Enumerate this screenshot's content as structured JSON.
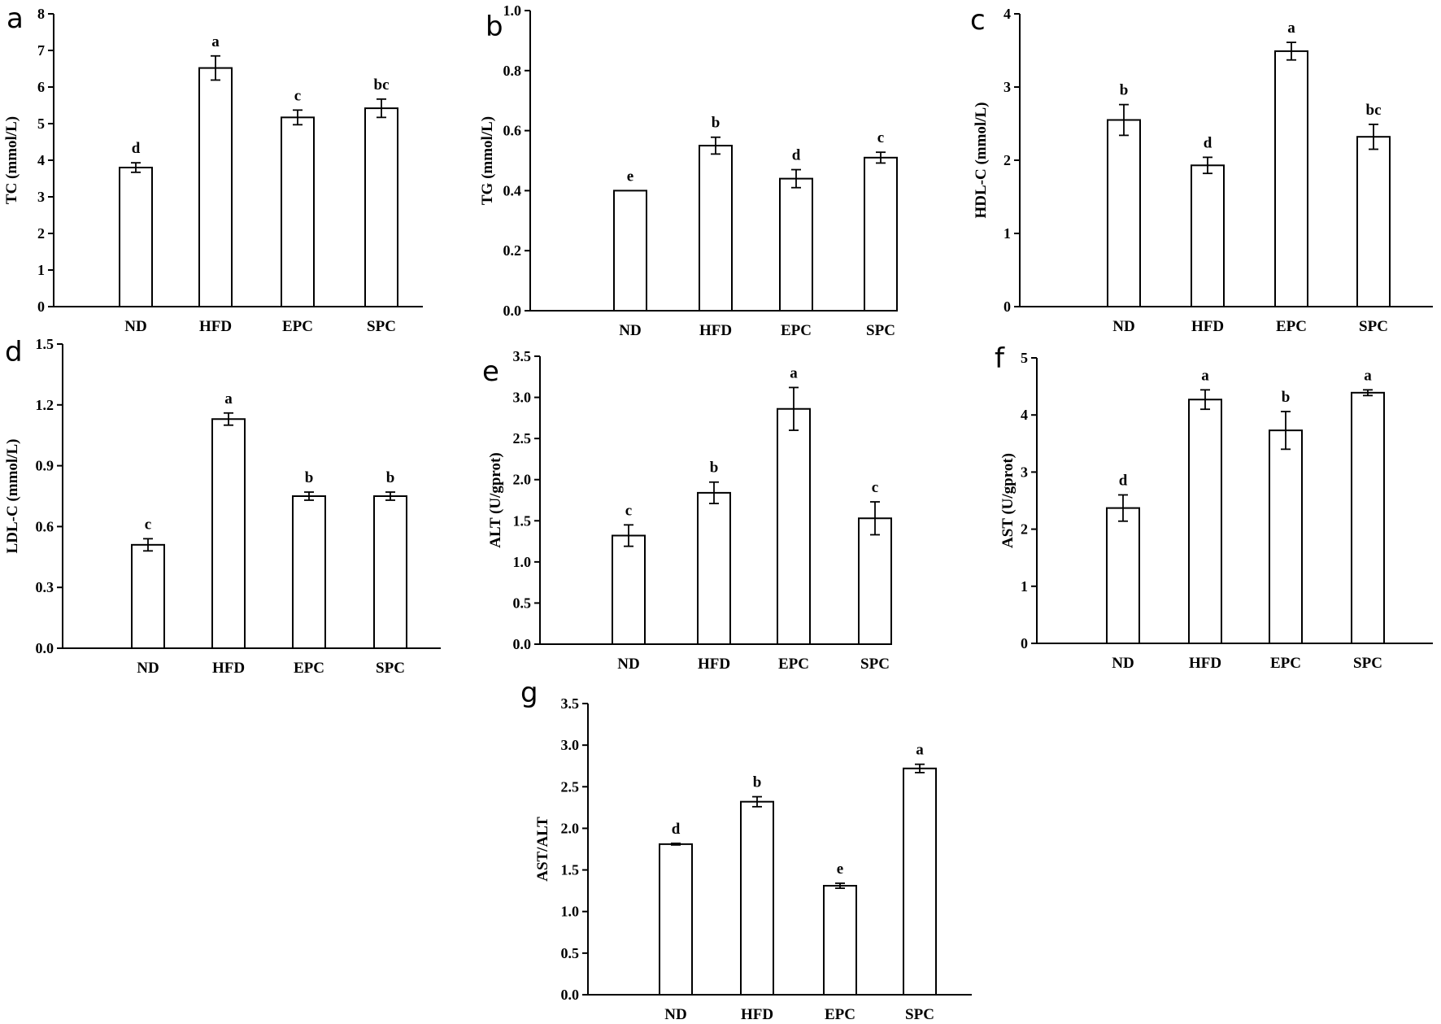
{
  "chart_data": [
    {
      "panel": "a",
      "type": "bar",
      "categories": [
        "ND",
        "HFD",
        "EPC",
        "SPC"
      ],
      "values": [
        3.8,
        6.52,
        5.17,
        5.42
      ],
      "errors": [
        0.13,
        0.33,
        0.2,
        0.25
      ],
      "significance": [
        "d",
        "a",
        "c",
        "bc"
      ],
      "ylabel": "TC (mmol/L)",
      "ylim": [
        0,
        8
      ],
      "yticks": [
        "0",
        "1",
        "2",
        "3",
        "4",
        "5",
        "6",
        "7",
        "8"
      ]
    },
    {
      "panel": "b",
      "type": "bar",
      "categories": [
        "ND",
        "HFD",
        "EPC",
        "SPC"
      ],
      "values": [
        0.4,
        0.55,
        0.44,
        0.51
      ],
      "errors": [
        0.0,
        0.028,
        0.03,
        0.018
      ],
      "significance": [
        "e",
        "b",
        "d",
        "c"
      ],
      "ylabel": "TG (mmol/L)",
      "ylim": [
        0,
        1.0
      ],
      "yticks": [
        "0.0",
        "0.2",
        "0.4",
        "0.6",
        "0.8",
        "1.0"
      ]
    },
    {
      "panel": "c",
      "type": "bar",
      "categories": [
        "ND",
        "HFD",
        "EPC",
        "SPC"
      ],
      "values": [
        2.55,
        1.93,
        3.49,
        2.32
      ],
      "errors": [
        0.21,
        0.11,
        0.12,
        0.17
      ],
      "significance": [
        "b",
        "d",
        "a",
        "bc"
      ],
      "ylabel": "HDL-C (mmol/L)",
      "ylim": [
        0,
        4
      ],
      "yticks": [
        "0",
        "1",
        "2",
        "3",
        "4"
      ]
    },
    {
      "panel": "d",
      "type": "bar",
      "categories": [
        "ND",
        "HFD",
        "EPC",
        "SPC"
      ],
      "values": [
        0.51,
        1.13,
        0.75,
        0.75
      ],
      "errors": [
        0.03,
        0.03,
        0.02,
        0.02
      ],
      "significance": [
        "c",
        "a",
        "b",
        "b"
      ],
      "ylabel": "LDL-C (mmol/L)",
      "ylim": [
        0,
        1.5
      ],
      "yticks": [
        "0.0",
        "0.3",
        "0.6",
        "0.9",
        "1.2",
        "1.5"
      ]
    },
    {
      "panel": "e",
      "type": "bar",
      "categories": [
        "ND",
        "HFD",
        "EPC",
        "SPC"
      ],
      "values": [
        1.32,
        1.84,
        2.86,
        1.53
      ],
      "errors": [
        0.13,
        0.13,
        0.26,
        0.2
      ],
      "significance": [
        "c",
        "b",
        "a",
        "c"
      ],
      "ylabel": "ALT (U/gprot)",
      "ylim": [
        0,
        3.5
      ],
      "yticks": [
        "0.0",
        "0.5",
        "1.0",
        "1.5",
        "2.0",
        "2.5",
        "3.0",
        "3.5"
      ]
    },
    {
      "panel": "f",
      "type": "bar",
      "categories": [
        "ND",
        "HFD",
        "EPC",
        "SPC"
      ],
      "values": [
        2.37,
        4.27,
        3.73,
        4.39
      ],
      "errors": [
        0.23,
        0.17,
        0.33,
        0.05
      ],
      "significance": [
        "d",
        "a",
        "b",
        "a"
      ],
      "ylabel": "AST (U/gprot)",
      "ylim": [
        0,
        5
      ],
      "yticks": [
        "0",
        "1",
        "2",
        "3",
        "4",
        "5"
      ]
    },
    {
      "panel": "g",
      "type": "bar",
      "categories": [
        "ND",
        "HFD",
        "EPC",
        "SPC"
      ],
      "values": [
        1.81,
        2.32,
        1.31,
        2.72
      ],
      "errors": [
        0.01,
        0.06,
        0.03,
        0.05
      ],
      "significance": [
        "d",
        "b",
        "e",
        "a"
      ],
      "ylabel": "AST/ALT",
      "ylim": [
        0,
        3.5
      ],
      "yticks": [
        "0.0",
        "0.5",
        "1.0",
        "1.5",
        "2.0",
        "2.5",
        "3.0",
        "3.5"
      ]
    }
  ]
}
